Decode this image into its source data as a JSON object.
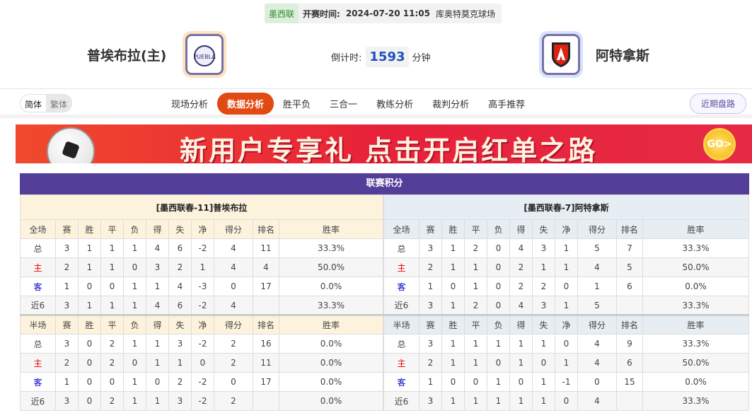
{
  "match": {
    "league": "墨西联",
    "time_label": "开赛时间:",
    "time": "2024-07-20 11:05",
    "venue": "库奥特莫克球场"
  },
  "home": {
    "name": "普埃布拉(主)",
    "logo_color": "#fde3bd"
  },
  "away": {
    "name": "阿特拿斯",
    "logo_color": "#d6e3fb"
  },
  "countdown": {
    "label": "倒计时:",
    "value": "1593",
    "unit": "分钟"
  },
  "lang": {
    "simplified": "简体",
    "traditional": "繁体"
  },
  "tabs": [
    "现场分析",
    "数据分析",
    "胜平负",
    "三合一",
    "教练分析",
    "裁判分析",
    "高手推荐"
  ],
  "active_tab": "数据分析",
  "recent_button": "近期盘路",
  "banner": {
    "text": "新用户专享礼  点击开启红单之路",
    "go": "GO>"
  },
  "standings": {
    "title": "联赛积分",
    "columns": [
      "赛",
      "胜",
      "平",
      "负",
      "得",
      "失",
      "净",
      "得分",
      "排名",
      "胜率"
    ],
    "full_label": "全场",
    "half_label": "半场",
    "teams": [
      {
        "header": "[墨西联春-11]普埃布拉",
        "full": [
          [
            "总",
            "3",
            "1",
            "1",
            "1",
            "4",
            "6",
            "-2",
            "4",
            "11",
            "33.3%"
          ],
          [
            "主",
            "2",
            "1",
            "1",
            "0",
            "3",
            "2",
            "1",
            "4",
            "4",
            "50.0%"
          ],
          [
            "客",
            "1",
            "0",
            "0",
            "1",
            "1",
            "4",
            "-3",
            "0",
            "17",
            "0.0%"
          ],
          [
            "近6",
            "3",
            "1",
            "1",
            "1",
            "4",
            "6",
            "-2",
            "4",
            "",
            "33.3%"
          ]
        ],
        "half": [
          [
            "总",
            "3",
            "0",
            "2",
            "1",
            "1",
            "3",
            "-2",
            "2",
            "16",
            "0.0%"
          ],
          [
            "主",
            "2",
            "0",
            "2",
            "0",
            "1",
            "1",
            "0",
            "2",
            "11",
            "0.0%"
          ],
          [
            "客",
            "1",
            "0",
            "0",
            "1",
            "0",
            "2",
            "-2",
            "0",
            "17",
            "0.0%"
          ],
          [
            "近6",
            "3",
            "0",
            "2",
            "1",
            "1",
            "3",
            "-2",
            "2",
            "",
            "0.0%"
          ]
        ]
      },
      {
        "header": "[墨西联春-7]阿特拿斯",
        "full": [
          [
            "总",
            "3",
            "1",
            "2",
            "0",
            "4",
            "3",
            "1",
            "5",
            "7",
            "33.3%"
          ],
          [
            "主",
            "2",
            "1",
            "1",
            "0",
            "2",
            "1",
            "1",
            "4",
            "5",
            "50.0%"
          ],
          [
            "客",
            "1",
            "0",
            "1",
            "0",
            "2",
            "2",
            "0",
            "1",
            "6",
            "0.0%"
          ],
          [
            "近6",
            "3",
            "1",
            "2",
            "0",
            "4",
            "3",
            "1",
            "5",
            "",
            "33.3%"
          ]
        ],
        "half": [
          [
            "总",
            "3",
            "1",
            "1",
            "1",
            "1",
            "1",
            "0",
            "4",
            "9",
            "33.3%"
          ],
          [
            "主",
            "2",
            "1",
            "1",
            "0",
            "1",
            "0",
            "1",
            "4",
            "6",
            "50.0%"
          ],
          [
            "客",
            "1",
            "0",
            "0",
            "1",
            "0",
            "1",
            "-1",
            "0",
            "15",
            "0.0%"
          ],
          [
            "近6",
            "3",
            "1",
            "1",
            "1",
            "1",
            "1",
            "0",
            "4",
            "",
            "33.3%"
          ]
        ]
      }
    ]
  }
}
